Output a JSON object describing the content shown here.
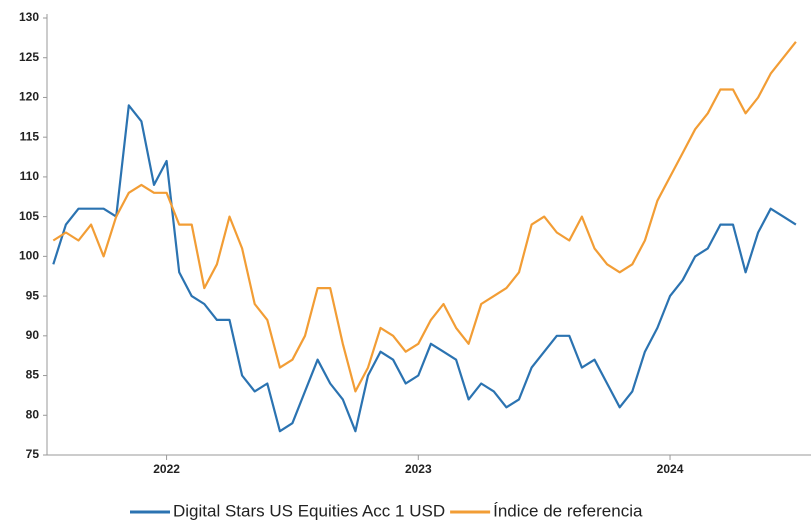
{
  "chart_data": {
    "type": "line",
    "x": [
      2021.55,
      2021.6,
      2021.65,
      2021.7,
      2021.75,
      2021.8,
      2021.85,
      2021.9,
      2021.95,
      2022.0,
      2022.05,
      2022.1,
      2022.15,
      2022.2,
      2022.25,
      2022.3,
      2022.35,
      2022.4,
      2022.45,
      2022.5,
      2022.55,
      2022.6,
      2022.65,
      2022.7,
      2022.75,
      2022.8,
      2022.85,
      2022.9,
      2022.95,
      2023.0,
      2023.05,
      2023.1,
      2023.15,
      2023.2,
      2023.25,
      2023.3,
      2023.35,
      2023.4,
      2023.45,
      2023.5,
      2023.55,
      2023.6,
      2023.65,
      2023.7,
      2023.75,
      2023.8,
      2023.85,
      2023.9,
      2023.95,
      2024.0,
      2024.05,
      2024.1,
      2024.15,
      2024.2,
      2024.25,
      2024.3,
      2024.35,
      2024.4,
      2024.45,
      2024.5
    ],
    "series": [
      {
        "name": "Digital Stars US Equities Acc 1 USD",
        "color": "#2b73b1",
        "values": [
          99,
          104,
          106,
          106,
          106,
          105,
          119,
          117,
          109,
          112,
          98,
          95,
          94,
          92,
          92,
          85,
          83,
          84,
          78,
          79,
          83,
          87,
          84,
          82,
          78,
          85,
          88,
          87,
          84,
          85,
          89,
          88,
          87,
          82,
          84,
          83,
          81,
          82,
          86,
          88,
          90,
          90,
          86,
          87,
          84,
          81,
          83,
          88,
          91,
          95,
          97,
          100,
          101,
          104,
          104,
          98,
          103,
          106,
          105,
          104
        ]
      },
      {
        "name": "Índice de referencia",
        "color": "#f29d35",
        "values": [
          102,
          103,
          102,
          104,
          100,
          105,
          108,
          109,
          108,
          108,
          104,
          104,
          96,
          99,
          105,
          101,
          94,
          92,
          86,
          87,
          90,
          96,
          96,
          89,
          83,
          86,
          91,
          90,
          88,
          89,
          92,
          94,
          91,
          89,
          94,
          95,
          96,
          98,
          104,
          105,
          103,
          102,
          105,
          101,
          99,
          98,
          99,
          102,
          107,
          110,
          113,
          116,
          118,
          121,
          121,
          118,
          120,
          123,
          125,
          127
        ]
      }
    ],
    "xlim": [
      2021.525,
      2024.56
    ],
    "xticks": [
      2022,
      2023,
      2024
    ],
    "ylim": [
      75,
      130
    ],
    "yticks": [
      75,
      80,
      85,
      90,
      95,
      100,
      105,
      110,
      115,
      120,
      125,
      130
    ],
    "grid": false,
    "legend": "bottom"
  }
}
